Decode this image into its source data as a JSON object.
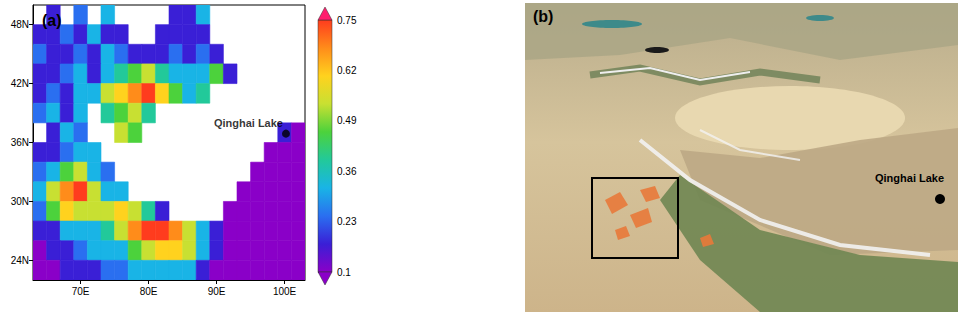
{
  "chart_data": [
    {
      "type": "map_grid",
      "title": "(a)",
      "xlim": [
        63,
        103
      ],
      "ylim": [
        22,
        50
      ],
      "xticks": [
        {
          "value": 70,
          "label": "70E"
        },
        {
          "value": 80,
          "label": "80E"
        },
        {
          "value": 90,
          "label": "90E"
        },
        {
          "value": 100,
          "label": "100E"
        }
      ],
      "yticks": [
        {
          "value": 24,
          "label": "24N"
        },
        {
          "value": 30,
          "label": "30N"
        },
        {
          "value": 36,
          "label": "36N"
        },
        {
          "value": 42,
          "label": "42N"
        },
        {
          "value": 48,
          "label": "48N"
        }
      ],
      "x": [
        64,
        66,
        68,
        70,
        72,
        74,
        76,
        78,
        80,
        82,
        84,
        86,
        88,
        90,
        92,
        94,
        96,
        98,
        100,
        102
      ],
      "y": [
        49,
        47,
        45,
        43,
        41,
        39,
        37,
        35,
        33,
        31,
        29,
        27,
        25,
        23
      ],
      "cells": [
        [
          null,
          0.2,
          null,
          0.25,
          null,
          0.3,
          null,
          null,
          null,
          null,
          0.2,
          0.15,
          0.3,
          null,
          null,
          null,
          null,
          null,
          null,
          null
        ],
        [
          0.2,
          0.15,
          0.25,
          0.2,
          0.3,
          0.15,
          0.2,
          null,
          null,
          0.2,
          0.15,
          0.2,
          0.15,
          null,
          null,
          null,
          null,
          null,
          null,
          null
        ],
        [
          0.25,
          0.2,
          0.15,
          0.25,
          0.2,
          0.3,
          0.25,
          0.2,
          0.15,
          0.2,
          0.25,
          0.2,
          0.25,
          0.2,
          null,
          null,
          null,
          null,
          null,
          null
        ],
        [
          0.15,
          0.2,
          0.25,
          0.3,
          0.2,
          0.35,
          0.4,
          0.45,
          0.5,
          0.4,
          0.35,
          0.3,
          0.3,
          0.45,
          0.2,
          null,
          null,
          null,
          null,
          null
        ],
        [
          0.2,
          0.25,
          0.2,
          0.3,
          0.35,
          0.5,
          0.6,
          0.7,
          0.72,
          0.6,
          0.45,
          0.35,
          0.4,
          null,
          null,
          null,
          null,
          null,
          null,
          null
        ],
        [
          0.25,
          0.3,
          0.2,
          0.3,
          null,
          0.4,
          0.45,
          0.5,
          0.4,
          null,
          null,
          null,
          null,
          null,
          null,
          null,
          null,
          null,
          null,
          null
        ],
        [
          null,
          0.2,
          0.3,
          0.25,
          null,
          null,
          0.5,
          0.45,
          null,
          null,
          null,
          null,
          null,
          null,
          null,
          null,
          null,
          null,
          0.15,
          0.12
        ],
        [
          0.2,
          0.15,
          0.25,
          0.35,
          0.3,
          null,
          null,
          null,
          null,
          null,
          null,
          null,
          null,
          null,
          null,
          null,
          null,
          0.12,
          0.1,
          0.1
        ],
        [
          0.25,
          0.3,
          0.45,
          0.55,
          0.35,
          0.25,
          null,
          null,
          null,
          null,
          null,
          null,
          null,
          null,
          null,
          null,
          0.1,
          0.1,
          0.1,
          0.1
        ],
        [
          0.3,
          0.5,
          0.68,
          0.75,
          0.55,
          0.35,
          0.3,
          null,
          null,
          null,
          null,
          null,
          null,
          null,
          null,
          0.1,
          0.1,
          0.1,
          0.1,
          0.1
        ],
        [
          0.25,
          0.45,
          0.6,
          0.55,
          0.5,
          0.55,
          0.6,
          0.5,
          0.4,
          0.2,
          null,
          null,
          null,
          null,
          0.1,
          0.1,
          0.1,
          0.1,
          0.1,
          0.1
        ],
        [
          0.15,
          0.2,
          0.3,
          0.35,
          0.3,
          0.4,
          0.55,
          0.7,
          0.75,
          0.72,
          0.65,
          0.5,
          0.3,
          0.15,
          0.1,
          0.1,
          0.1,
          0.1,
          0.1,
          0.1
        ],
        [
          0.1,
          0.15,
          0.2,
          0.25,
          0.3,
          0.3,
          0.35,
          0.45,
          0.55,
          0.6,
          0.6,
          0.55,
          0.35,
          0.15,
          0.1,
          0.1,
          0.1,
          0.1,
          0.1,
          0.1
        ],
        [
          0.1,
          0.1,
          0.15,
          0.15,
          0.2,
          0.25,
          0.25,
          0.3,
          0.3,
          0.35,
          0.35,
          0.3,
          0.2,
          0.1,
          0.1,
          0.1,
          0.1,
          0.1,
          0.1,
          0.1
        ]
      ],
      "colorbar": {
        "range": [
          0.1,
          0.75
        ],
        "ticks": [
          0.1,
          0.23,
          0.36,
          0.49,
          0.62,
          0.75
        ]
      },
      "annotations": [
        {
          "text": "Qinghai Lake",
          "x": 100.2,
          "y": 36.9
        }
      ]
    },
    {
      "type": "image",
      "title": "(b)",
      "annotations": [
        {
          "text": "Qinghai Lake"
        }
      ]
    }
  ]
}
